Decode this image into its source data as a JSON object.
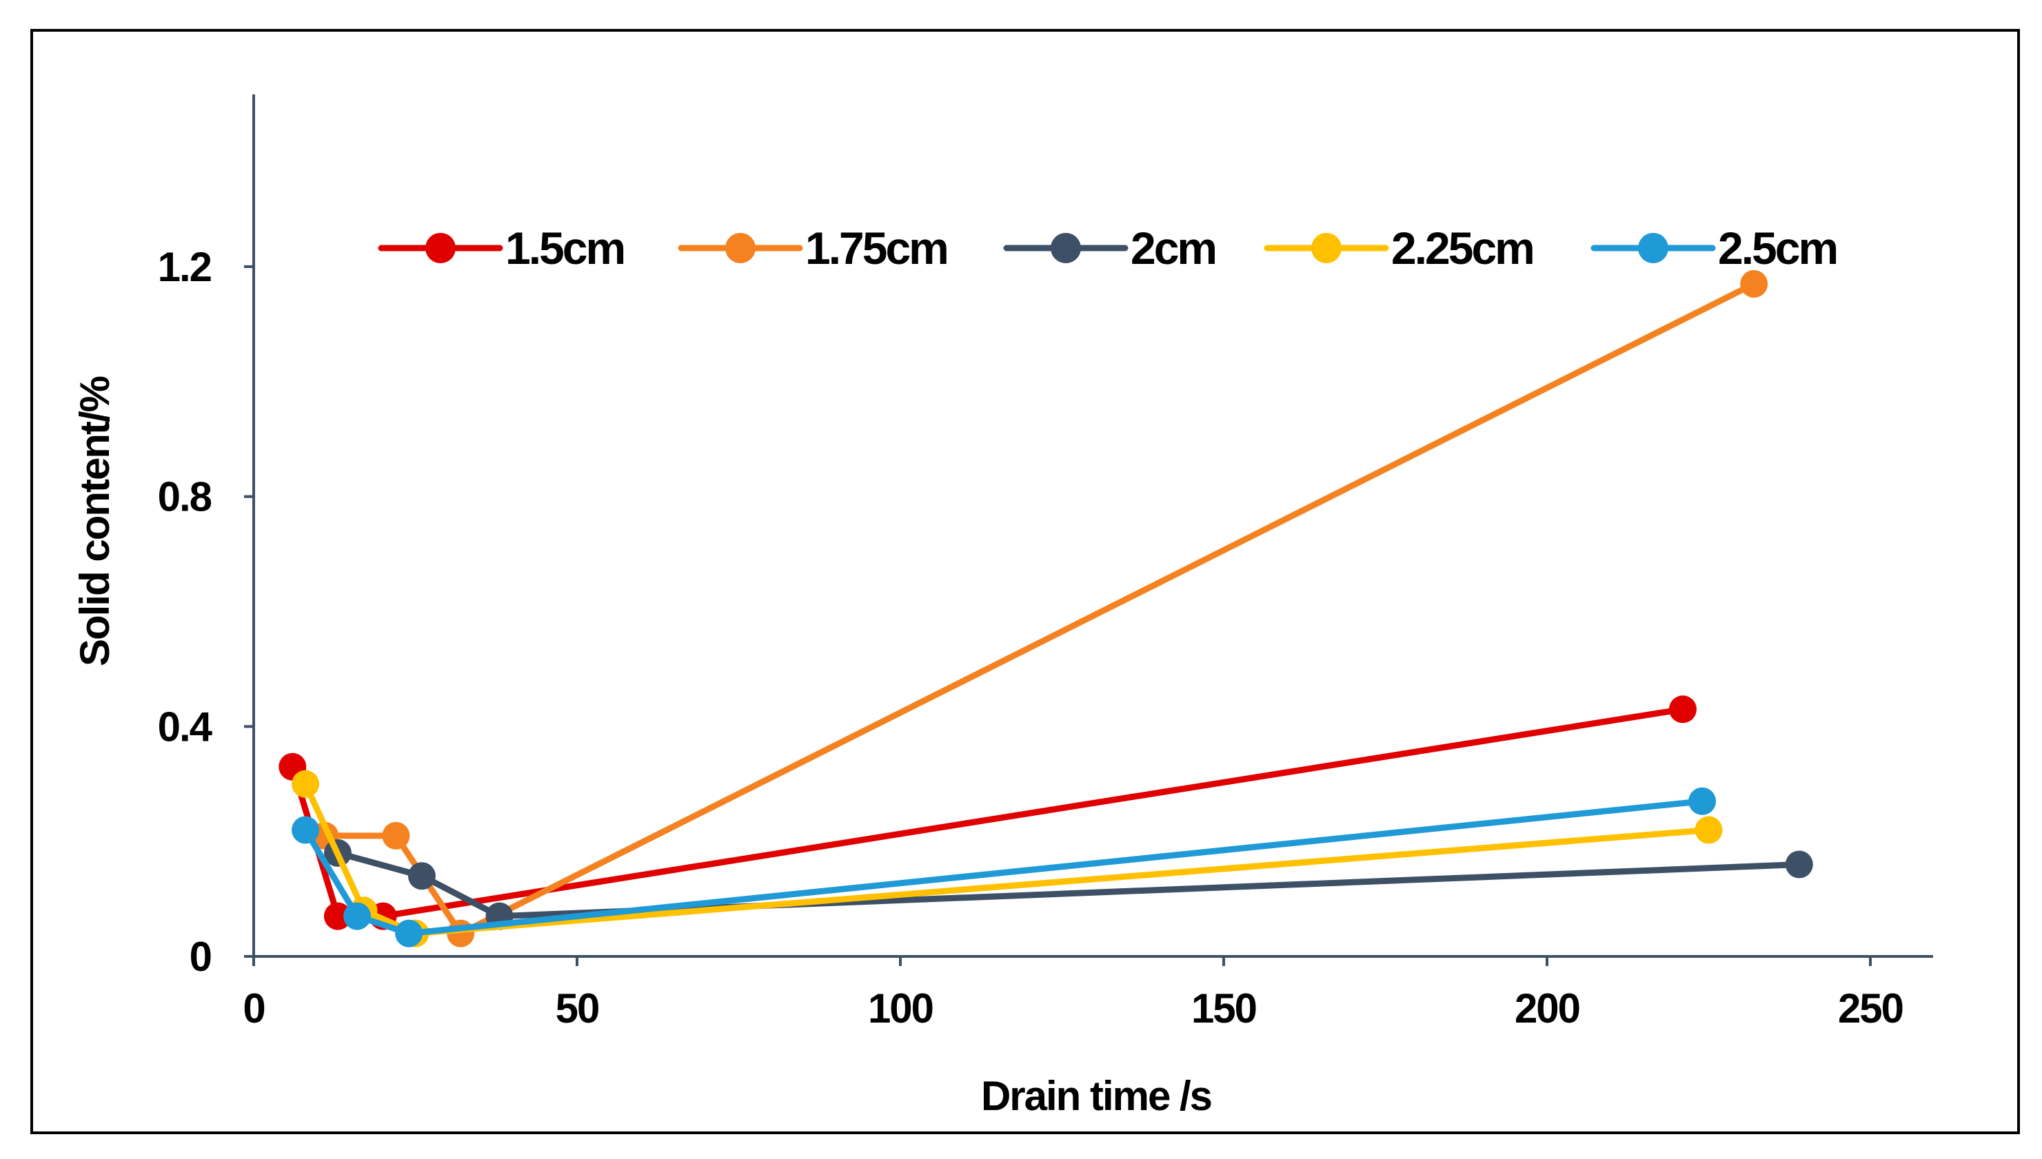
{
  "chart_data": {
    "type": "line",
    "title": "",
    "xlabel": "Drain time /s",
    "ylabel": "Solid content/%",
    "xlim": [
      0,
      260
    ],
    "ylim": [
      0,
      1.5
    ],
    "xticks": [
      0,
      50,
      100,
      150,
      200,
      250
    ],
    "xtick_labels": [
      "0",
      "50",
      "100",
      "150",
      "200",
      "250"
    ],
    "yticks": [
      0,
      0.4,
      0.8,
      1.2
    ],
    "ytick_labels": [
      "0",
      "0.4",
      "0.8",
      "1.2"
    ],
    "grid": false,
    "legend_position": "top",
    "series": [
      {
        "name": "1.5cm",
        "color": "#e00000",
        "x": [
          6,
          13,
          20,
          221
        ],
        "y": [
          0.33,
          0.07,
          0.07,
          0.43
        ]
      },
      {
        "name": "1.75cm",
        "color": "#f58220",
        "x": [
          11,
          22,
          32,
          232
        ],
        "y": [
          0.21,
          0.21,
          0.04,
          1.17
        ]
      },
      {
        "name": "2cm",
        "color": "#3d5066",
        "x": [
          13,
          26,
          38,
          239
        ],
        "y": [
          0.18,
          0.14,
          0.07,
          0.16
        ]
      },
      {
        "name": "2.25cm",
        "color": "#ffc000",
        "x": [
          8,
          17,
          25,
          225
        ],
        "y": [
          0.3,
          0.08,
          0.04,
          0.22
        ]
      },
      {
        "name": "2.5cm",
        "color": "#1f9ad6",
        "x": [
          8,
          16,
          24,
          224
        ],
        "y": [
          0.22,
          0.07,
          0.04,
          0.27
        ]
      }
    ]
  }
}
